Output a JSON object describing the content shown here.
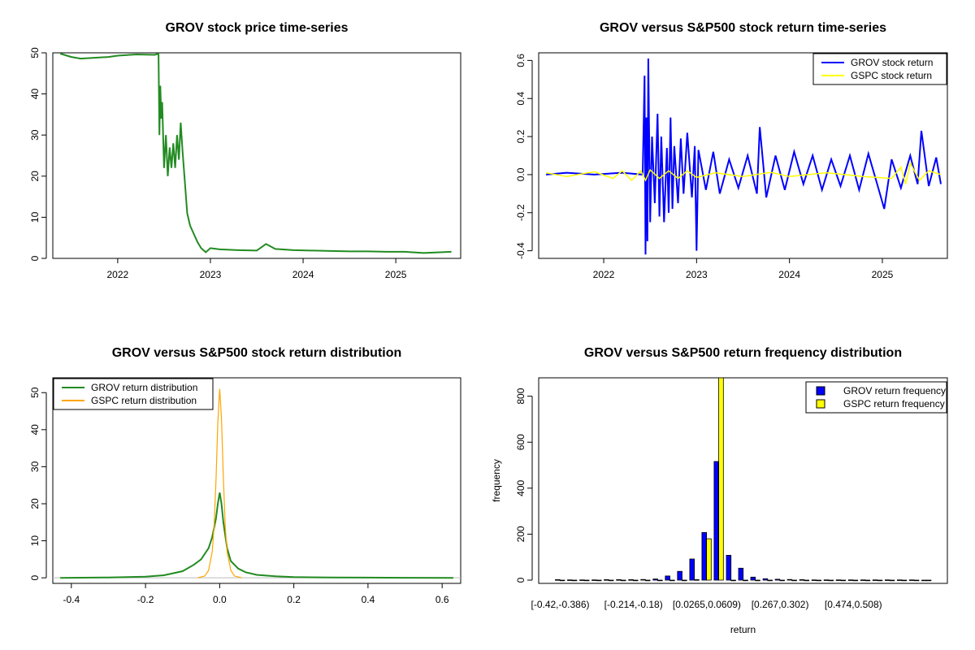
{
  "chart_data": [
    {
      "type": "line",
      "title": "GROV stock price time-series",
      "xlabel": "",
      "ylabel": "",
      "xlim": [
        2021.3,
        2025.7
      ],
      "ylim": [
        0,
        50
      ],
      "x_ticks": [
        2022,
        2023,
        2024,
        2025
      ],
      "x_tick_labels": [
        "2022",
        "2023",
        "2024",
        "2025"
      ],
      "y_ticks": [
        0,
        10,
        20,
        30,
        40,
        50
      ],
      "y_tick_labels": [
        "0",
        "10",
        "20",
        "30",
        "40",
        "50"
      ],
      "series": [
        {
          "name": "GROV price",
          "color": "#228B22",
          "x": [
            2021.38,
            2021.5,
            2021.6,
            2021.75,
            2021.9,
            2022.0,
            2022.2,
            2022.4,
            2022.44,
            2022.45,
            2022.46,
            2022.47,
            2022.48,
            2022.5,
            2022.52,
            2022.54,
            2022.56,
            2022.58,
            2022.6,
            2022.62,
            2022.64,
            2022.66,
            2022.68,
            2022.7,
            2022.72,
            2022.75,
            2022.78,
            2022.82,
            2022.86,
            2022.9,
            2022.95,
            2023.0,
            2023.1,
            2023.3,
            2023.5,
            2023.6,
            2023.7,
            2023.9,
            2024.1,
            2024.3,
            2024.5,
            2024.7,
            2024.9,
            2025.1,
            2025.3,
            2025.4,
            2025.6
          ],
          "values": [
            49.8,
            49,
            48.6,
            48.8,
            49,
            49.3,
            49.6,
            49.5,
            49.8,
            30,
            42,
            34,
            38,
            22,
            30,
            20,
            27,
            22,
            28,
            22,
            30,
            24,
            33,
            26,
            20,
            11,
            8,
            6,
            4,
            2.5,
            1.5,
            2.5,
            2.2,
            2.0,
            1.9,
            3.5,
            2.3,
            2.0,
            1.9,
            1.8,
            1.7,
            1.7,
            1.6,
            1.6,
            1.3,
            1.4,
            1.6
          ]
        }
      ]
    },
    {
      "type": "line",
      "title": "GROV versus S&P500 stock return time-series",
      "xlabel": "",
      "ylabel": "",
      "xlim": [
        2021.3,
        2025.7
      ],
      "ylim": [
        -0.44,
        0.64
      ],
      "x_ticks": [
        2022,
        2023,
        2024,
        2025
      ],
      "x_tick_labels": [
        "2022",
        "2023",
        "2024",
        "2025"
      ],
      "y_ticks": [
        -0.4,
        -0.2,
        0.0,
        0.2,
        0.4,
        0.6
      ],
      "y_tick_labels": [
        "-0.4",
        "-0.2",
        "0.0",
        "0.2",
        "0.4",
        "0.6"
      ],
      "legend": {
        "position": "top-right",
        "entries": [
          "GROV stock return",
          "GSPC stock return"
        ]
      },
      "series": [
        {
          "name": "GROV stock return",
          "color": "#0000FF",
          "x": [
            2021.38,
            2021.6,
            2021.9,
            2022.2,
            2022.42,
            2022.44,
            2022.45,
            2022.46,
            2022.47,
            2022.48,
            2022.5,
            2022.52,
            2022.55,
            2022.58,
            2022.6,
            2022.62,
            2022.65,
            2022.68,
            2022.7,
            2022.72,
            2022.74,
            2022.76,
            2022.8,
            2022.83,
            2022.86,
            2022.9,
            2022.95,
            2022.98,
            2023.0,
            2023.02,
            2023.1,
            2023.18,
            2023.25,
            2023.35,
            2023.45,
            2023.55,
            2023.65,
            2023.68,
            2023.75,
            2023.85,
            2023.95,
            2024.05,
            2024.15,
            2024.25,
            2024.35,
            2024.45,
            2024.55,
            2024.65,
            2024.75,
            2024.85,
            2024.95,
            2025.02,
            2025.1,
            2025.2,
            2025.3,
            2025.38,
            2025.42,
            2025.5,
            2025.58,
            2025.63
          ],
          "values": [
            0.0,
            0.01,
            0.0,
            0.01,
            0.0,
            0.52,
            -0.42,
            0.3,
            -0.35,
            0.61,
            -0.25,
            0.2,
            -0.15,
            0.32,
            -0.22,
            0.2,
            -0.25,
            0.14,
            -0.2,
            0.3,
            -0.18,
            0.15,
            -0.15,
            0.19,
            -0.1,
            0.22,
            -0.12,
            0.15,
            -0.4,
            0.13,
            -0.08,
            0.12,
            -0.1,
            0.08,
            -0.07,
            0.1,
            -0.1,
            0.25,
            -0.12,
            0.1,
            -0.08,
            0.12,
            -0.05,
            0.1,
            -0.08,
            0.08,
            -0.06,
            0.1,
            -0.08,
            0.11,
            -0.06,
            -0.18,
            0.08,
            -0.07,
            0.1,
            -0.05,
            0.23,
            -0.06,
            0.09,
            -0.05
          ]
        },
        {
          "name": "GSPC stock return",
          "color": "#FFFF00",
          "x": [
            2021.38,
            2021.6,
            2021.9,
            2022.1,
            2022.2,
            2022.3,
            2022.4,
            2022.45,
            2022.5,
            2022.6,
            2022.7,
            2022.8,
            2022.9,
            2023.0,
            2023.2,
            2023.5,
            2023.8,
            2024.0,
            2024.4,
            2024.8,
            2025.1,
            2025.2,
            2025.25,
            2025.3,
            2025.4,
            2025.5,
            2025.63
          ],
          "values": [
            0.01,
            -0.01,
            0.015,
            -0.02,
            0.02,
            -0.03,
            0.02,
            -0.03,
            0.025,
            -0.02,
            0.02,
            -0.02,
            0.02,
            -0.015,
            0.01,
            -0.01,
            0.012,
            -0.01,
            0.01,
            -0.01,
            -0.02,
            0.04,
            -0.05,
            0.06,
            -0.03,
            0.02,
            0.0
          ]
        }
      ]
    },
    {
      "type": "line",
      "title": "GROV versus S&P500 stock return distribution",
      "xlabel": "",
      "ylabel": "",
      "xlim": [
        -0.45,
        0.65
      ],
      "ylim": [
        -1.5,
        54
      ],
      "x_ticks": [
        -0.4,
        -0.2,
        0.0,
        0.2,
        0.4,
        0.6
      ],
      "x_tick_labels": [
        "-0.4",
        "-0.2",
        "0.0",
        "0.2",
        "0.4",
        "0.6"
      ],
      "y_ticks": [
        0,
        10,
        20,
        30,
        40,
        50
      ],
      "y_tick_labels": [
        "0",
        "10",
        "20",
        "30",
        "40",
        "50"
      ],
      "legend": {
        "position": "top-left",
        "entries": [
          "GROV return distribution",
          "GSPC return distribution"
        ]
      },
      "series": [
        {
          "name": "GROV return distribution",
          "color": "#228B22",
          "x": [
            -0.43,
            -0.3,
            -0.2,
            -0.15,
            -0.1,
            -0.07,
            -0.05,
            -0.03,
            -0.02,
            -0.01,
            -0.005,
            0.0,
            0.005,
            0.01,
            0.02,
            0.03,
            0.05,
            0.07,
            0.1,
            0.15,
            0.2,
            0.3,
            0.4,
            0.5,
            0.63
          ],
          "values": [
            0,
            0.1,
            0.3,
            0.7,
            1.8,
            3.5,
            5,
            8,
            11,
            16,
            20,
            23,
            20,
            15,
            8,
            4.5,
            2.5,
            1.5,
            0.8,
            0.4,
            0.2,
            0.1,
            0.05,
            0.02,
            0
          ]
        },
        {
          "name": "GSPC return distribution",
          "color": "#FFA500",
          "x": [
            -0.06,
            -0.04,
            -0.03,
            -0.02,
            -0.015,
            -0.01,
            -0.005,
            0.0,
            0.005,
            0.01,
            0.015,
            0.02,
            0.03,
            0.04,
            0.06
          ],
          "values": [
            0,
            0.5,
            2,
            7,
            14,
            26,
            42,
            51,
            43,
            27,
            14,
            7,
            2,
            0.5,
            0
          ]
        }
      ]
    },
    {
      "type": "bar",
      "title": "GROV versus S&P500 return frequency distribution",
      "xlabel": "return",
      "ylabel": "frequency",
      "ylim": [
        0,
        880
      ],
      "y_ticks": [
        0,
        200,
        400,
        600,
        800
      ],
      "y_tick_labels": [
        "0",
        "200",
        "400",
        "600",
        "800"
      ],
      "shown_category_labels": [
        "[-0.42,-0.386)",
        "[-0.214,-0.18)",
        "[0.0265,0.0609)",
        "[0.267,0.302)",
        "[0.474,0.508)"
      ],
      "label_every": 6,
      "legend": {
        "position": "top-right",
        "entries": [
          "GROV return frequency",
          "GSPC return frequency"
        ]
      },
      "series": [
        {
          "name": "GROV return frequency",
          "color": "#0000FF",
          "values": [
            2,
            1,
            1,
            1,
            2,
            2,
            2,
            3,
            5,
            18,
            38,
            92,
            207,
            516,
            108,
            52,
            13,
            6,
            4,
            3,
            2,
            1,
            1,
            1,
            1,
            1,
            1,
            1,
            1,
            1,
            0
          ]
        },
        {
          "name": "GSPC return frequency",
          "color": "#FFFF00",
          "values": [
            0,
            0,
            0,
            0,
            0,
            0,
            0,
            0,
            0,
            0,
            0,
            2,
            180,
            880,
            0,
            0,
            0,
            0,
            0,
            0,
            0,
            0,
            0,
            0,
            0,
            0,
            0,
            0,
            0,
            0,
            0
          ]
        }
      ]
    }
  ]
}
